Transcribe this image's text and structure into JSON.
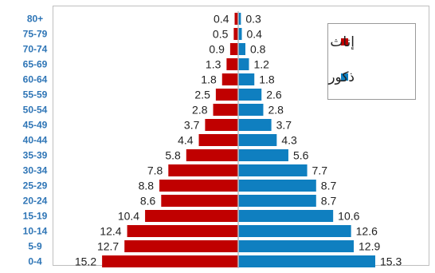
{
  "chart_data": {
    "type": "bar",
    "orientation": "horizontal",
    "layout": "population-pyramid",
    "categories": [
      "80+",
      "75-79",
      "70-74",
      "65-69",
      "60-64",
      "55-59",
      "50-54",
      "45-49",
      "40-44",
      "35-39",
      "30-34",
      "25-29",
      "20-24",
      "15-19",
      "10-14",
      "5-9",
      "0-4"
    ],
    "series": [
      {
        "name": "إناث",
        "side": "left",
        "color": "#c00000",
        "values": [
          0.4,
          0.5,
          0.9,
          1.3,
          1.8,
          2.5,
          2.8,
          3.7,
          4.4,
          5.8,
          7.8,
          8.8,
          8.6,
          10.4,
          12.4,
          12.7,
          15.2
        ]
      },
      {
        "name": "ذكور",
        "side": "right",
        "color": "#0f7fc0",
        "values": [
          0.3,
          0.4,
          0.8,
          1.2,
          1.8,
          2.6,
          2.8,
          3.7,
          4.3,
          5.6,
          7.7,
          8.7,
          8.7,
          10.6,
          12.6,
          12.9,
          15.3
        ]
      }
    ],
    "xlim": [
      -15.3,
      15.3
    ],
    "data_labels": true,
    "legend_position": "top-right",
    "category_label_color": "#2e75b6",
    "grid": false
  }
}
